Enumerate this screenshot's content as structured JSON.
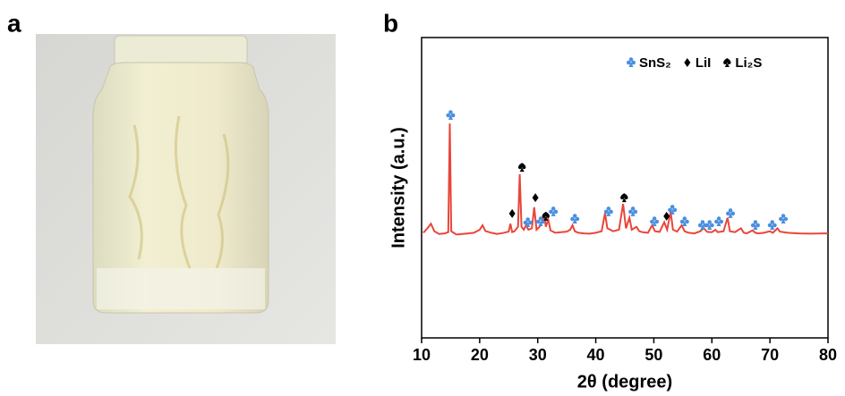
{
  "panel_labels": [
    "a",
    "b"
  ],
  "chart_data": {
    "type": "line",
    "xlabel": "2θ (degree)",
    "ylabel": "Intensity (a.u.)",
    "xlim": [
      10,
      80
    ],
    "xticks": [
      10,
      20,
      30,
      40,
      50,
      60,
      70,
      80
    ],
    "ylim": [
      0,
      100
    ],
    "color": "#e8463a",
    "x": [
      10.3,
      11,
      11.6,
      12.2,
      13,
      14,
      14.6,
      14.85,
      15.1,
      16,
      17,
      18,
      19,
      20,
      20.5,
      21,
      22,
      23,
      24,
      25,
      25.3,
      25.6,
      26,
      26.6,
      26.9,
      27.2,
      27.6,
      28,
      28.4,
      29,
      29.4,
      29.8,
      30.3,
      30.7,
      31.1,
      31.4,
      31.8,
      32.2,
      33,
      34,
      35,
      35.6,
      36,
      36.4,
      37,
      38,
      39,
      40,
      41,
      41.6,
      42,
      43,
      44,
      44.7,
      45.2,
      45.8,
      46.2,
      47,
      47.5,
      48,
      49,
      49.7,
      50.2,
      51,
      51.8,
      52.3,
      52.9,
      53.3,
      54,
      54.8,
      55.3,
      56,
      57,
      58,
      58.6,
      59.2,
      60,
      60.6,
      61,
      62,
      62.7,
      63.1,
      64,
      65,
      65.5,
      66,
      67,
      67.5,
      68,
      69,
      70,
      70.5,
      71.3,
      71.7,
      73,
      75,
      77,
      79,
      80
    ],
    "values": [
      35,
      36.5,
      38,
      35.5,
      34.6,
      34.8,
      35.2,
      71.4,
      35.5,
      34.4,
      34.6,
      34.8,
      35,
      36,
      37.5,
      35.6,
      35,
      34.6,
      34.9,
      35.4,
      38,
      35.2,
      35.5,
      37,
      54.5,
      37,
      36,
      37.5,
      36,
      36.5,
      43.5,
      36,
      37,
      38.5,
      41,
      37,
      39.5,
      35.8,
      35,
      35.2,
      35.4,
      36,
      37.5,
      35.5,
      35,
      34.8,
      34.7,
      35,
      35.5,
      41.5,
      36.5,
      35.5,
      36,
      44.6,
      36.5,
      40,
      36,
      37,
      35.5,
      35.2,
      35,
      37.5,
      35.5,
      35.3,
      38.5,
      36,
      42,
      36,
      35.4,
      37.5,
      35.5,
      35,
      34.8,
      35.5,
      36.5,
      35.3,
      35.2,
      36,
      35.2,
      35.5,
      40,
      35.5,
      35.2,
      36.5,
      35,
      34.8,
      35.8,
      35,
      34.8,
      35,
      35.5,
      35,
      36.5,
      35.4,
      35,
      34.8,
      34.7,
      34.8,
      34.8
    ],
    "markers": [
      {
        "name": "SnS₂",
        "color": "#4a8fe0",
        "shape": "club",
        "x": [
          15,
          28.3,
          30.5,
          32.7,
          36.4,
          42.2,
          46.4,
          50.1,
          53.2,
          55.3,
          58.4,
          59.6,
          61.2,
          63.2,
          67.5,
          70.4,
          72.3
        ],
        "y": [
          74.1,
          38.4,
          38.7,
          42,
          39.6,
          42,
          42,
          38.7,
          42.6,
          38.7,
          37.5,
          37.5,
          38.7,
          41.4,
          37.5,
          37.5,
          39.6
        ]
      },
      {
        "name": "LiI",
        "color": "#000000",
        "shape": "diamond",
        "x": [
          25.6,
          29.6,
          52.2
        ],
        "y": [
          41.4,
          46.7,
          40.5
        ]
      },
      {
        "name": "Li₂S",
        "color": "#000000",
        "shape": "spade",
        "x": [
          27.3,
          31.4,
          44.9
        ],
        "y": [
          56.8,
          40.5,
          46.7
        ]
      }
    ]
  }
}
